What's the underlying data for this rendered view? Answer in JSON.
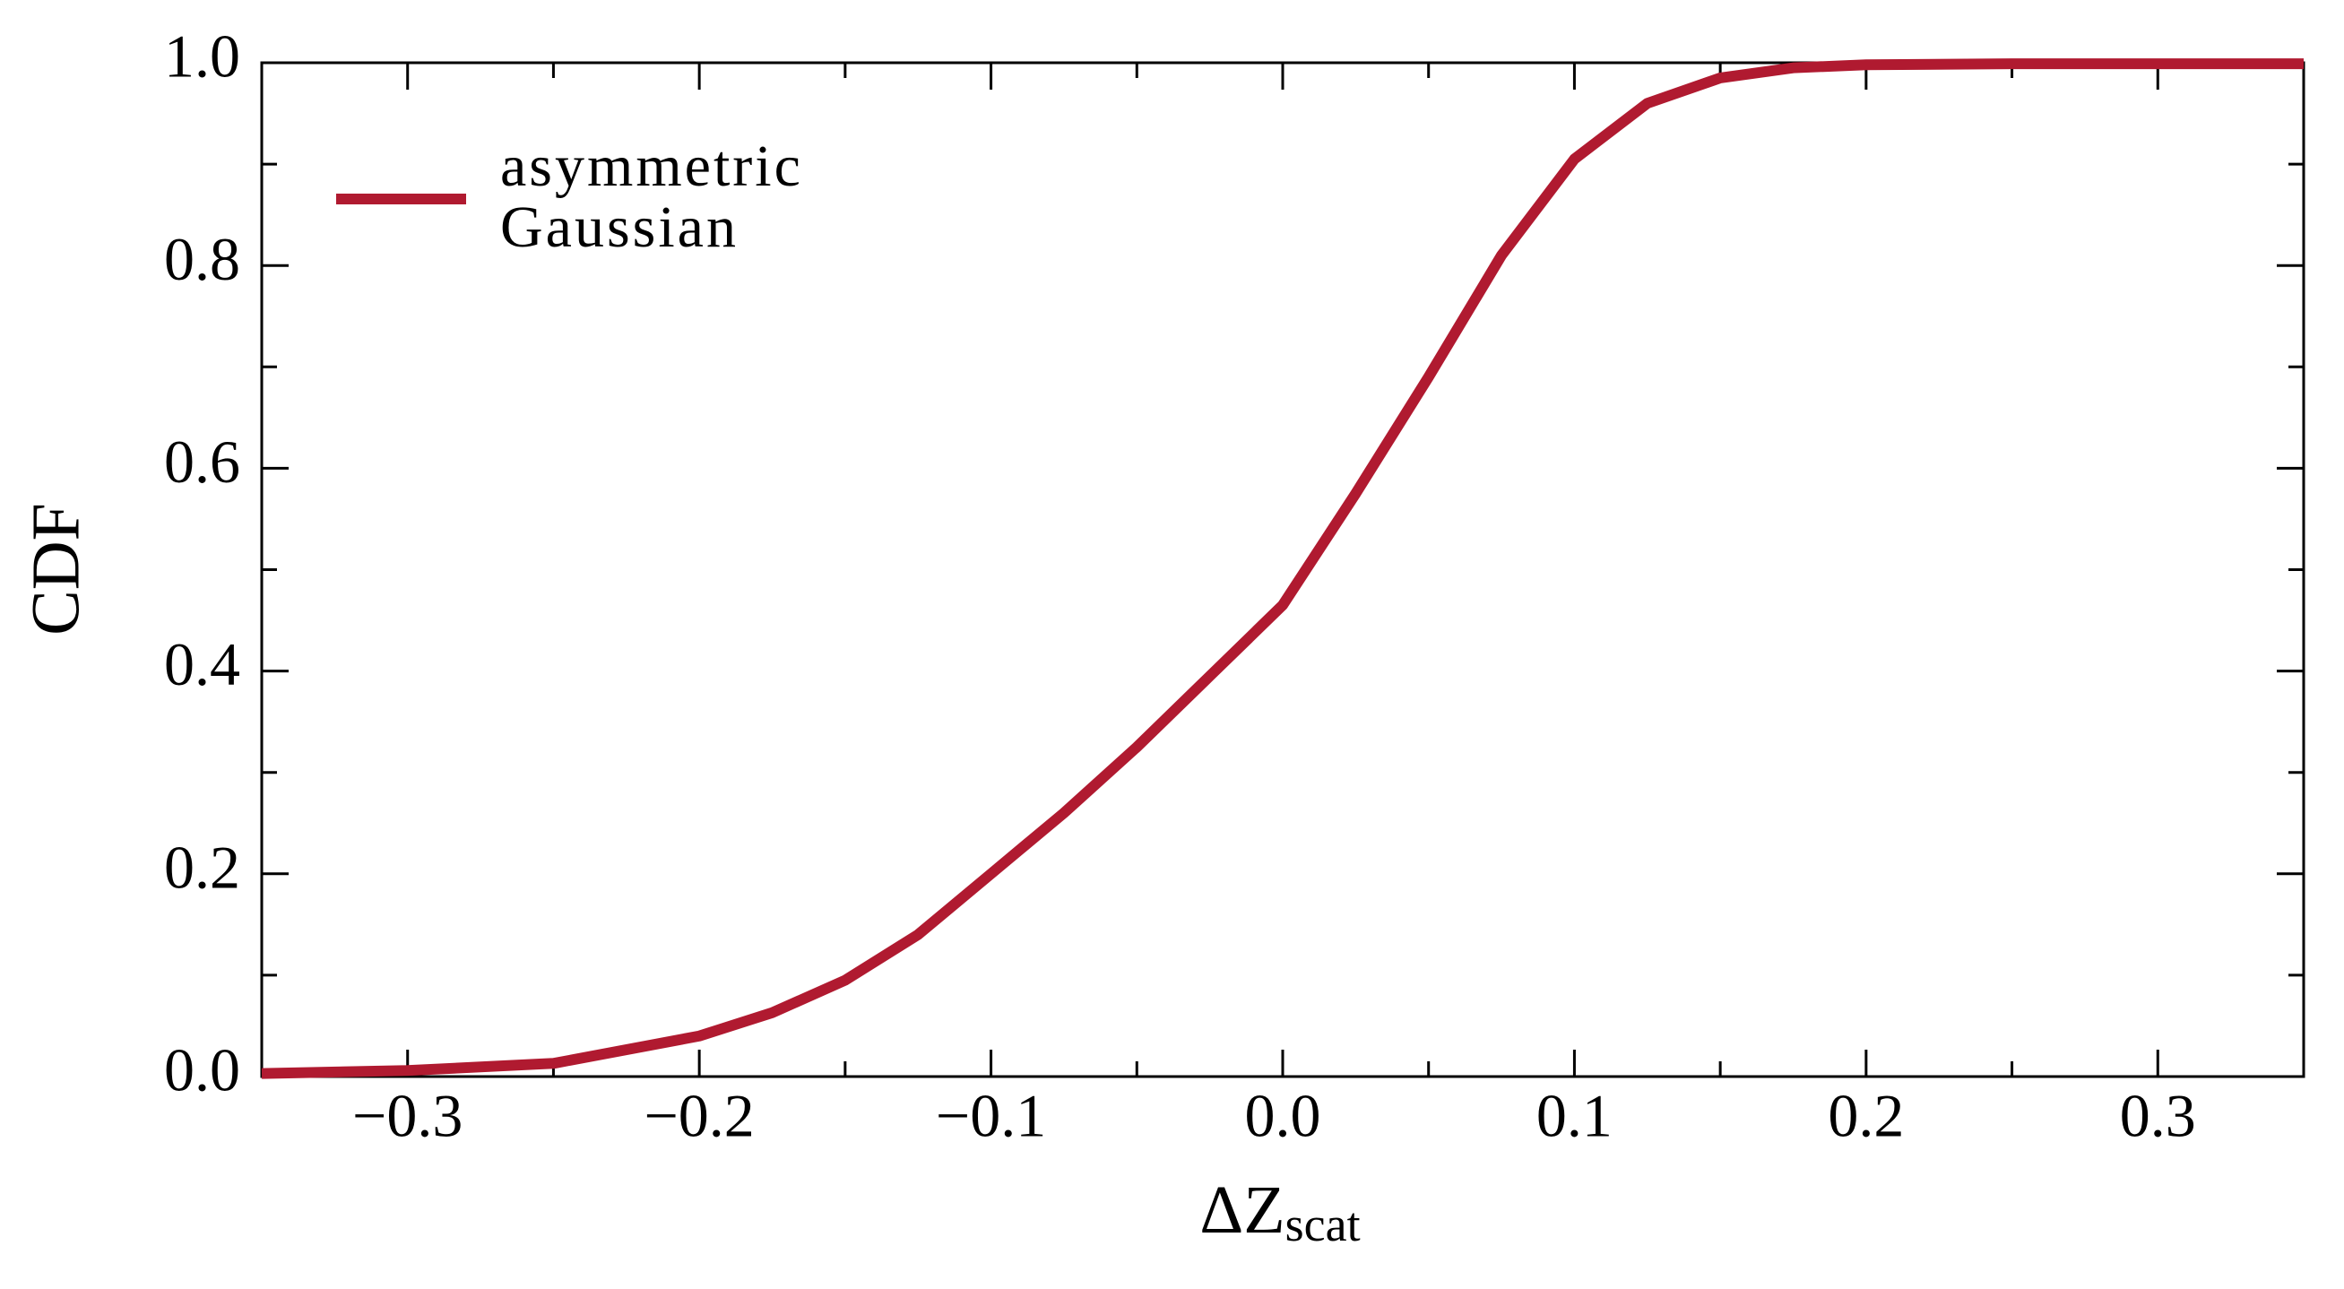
{
  "chart_data": {
    "type": "line",
    "xlabel": {
      "text": "ΔZ",
      "subscript": "scat"
    },
    "ylabel": "CDF",
    "x": [
      -0.35,
      -0.3,
      -0.25,
      -0.2,
      -0.175,
      -0.15,
      -0.125,
      -0.1,
      -0.075,
      -0.05,
      -0.025,
      0,
      0.025,
      0.05,
      0.075,
      0.1,
      0.125,
      0.15,
      0.175,
      0.2,
      0.25,
      0.3,
      0.35
    ],
    "series": [
      {
        "name": "asymmetric Gaussian",
        "color": "#b01a30",
        "values": [
          0.003,
          0.006,
          0.013,
          0.04,
          0.063,
          0.095,
          0.14,
          0.2,
          0.26,
          0.325,
          0.395,
          0.465,
          0.575,
          0.69,
          0.81,
          0.905,
          0.96,
          0.985,
          0.995,
          0.998,
          0.999,
          0.999,
          0.999
        ]
      }
    ],
    "xlim": [
      -0.35,
      0.35
    ],
    "ylim": [
      0,
      1
    ],
    "xticks": [
      {
        "value": -0.3,
        "label": "−0.3"
      },
      {
        "value": -0.2,
        "label": "−0.2"
      },
      {
        "value": -0.1,
        "label": "−0.1"
      },
      {
        "value": 0,
        "label": "0.0"
      },
      0.1,
      0.2,
      0.3
    ],
    "yticks": [
      {
        "value": 0,
        "label": "0.0"
      },
      0.2,
      0.4,
      0.6,
      0.8,
      {
        "value": 1,
        "label": "1.0"
      }
    ],
    "xminorticks": [
      -0.25,
      -0.15,
      -0.05,
      0.05,
      0.15,
      0.25
    ],
    "yminorticks": [
      0.1,
      0.3,
      0.5,
      0.7,
      0.9
    ],
    "legend": "upper left",
    "grid": false
  }
}
